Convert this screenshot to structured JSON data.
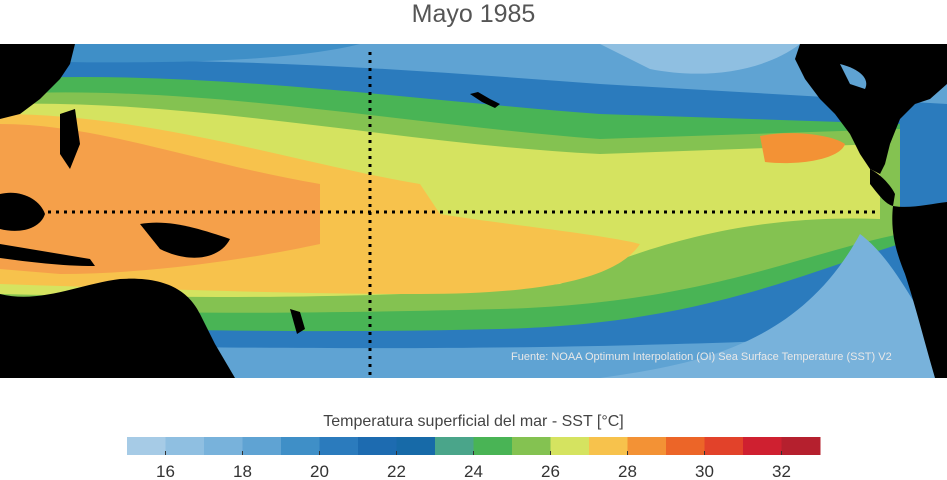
{
  "title": "Mayo 1985",
  "source": "Fuente: NOAA Optimum Interpolation (OI) Sea Surface Temperature (SST) V2",
  "colorbar": {
    "label": "Temperatura superficial del mar - SST  [°C]",
    "ticks": [
      "16",
      "18",
      "20",
      "22",
      "24",
      "26",
      "28",
      "30",
      "32"
    ],
    "min": 15,
    "max": 33,
    "bin_width": 1,
    "colors": [
      "#a6cbe6",
      "#8fbfe1",
      "#78b2db",
      "#5fa3d3",
      "#3f8fc7",
      "#2b7bbd",
      "#1d6bb0",
      "#176aa8",
      "#4aa58a",
      "#49b455",
      "#84c251",
      "#d5e360",
      "#f7c24c",
      "#f39235",
      "#ec6528",
      "#e2422a",
      "#cf2030",
      "#b5202e"
    ]
  },
  "map_colors": {
    "land": "#000000",
    "warm_pool": "#f5a04a",
    "hot": "#f39235",
    "warm": "#f7c24c",
    "mild": "#d5e360",
    "green": "#49b455",
    "cool": "#2b7bbd",
    "cold": "#78b2db",
    "guide_lines": "#000000"
  }
}
